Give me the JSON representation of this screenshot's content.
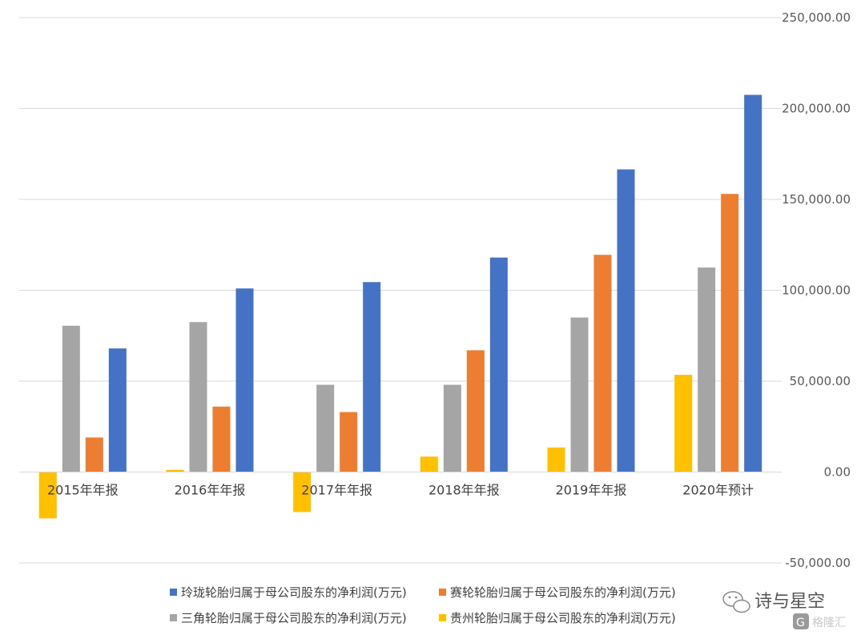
{
  "chart_data": {
    "type": "bar",
    "categories": [
      "2015年年报",
      "2016年年报",
      "2017年年报",
      "2018年年报",
      "2019年年报",
      "2020年预计"
    ],
    "series": [
      {
        "name": "玲珑轮胎归属于母公司股东的净利润(万元)",
        "color": "#4472C4",
        "values": [
          68000,
          101000,
          104500,
          118000,
          166500,
          207500
        ]
      },
      {
        "name": "赛轮轮胎归属于母公司股东的净利润(万元)",
        "color": "#ED7D31",
        "values": [
          19000,
          36000,
          33000,
          67000,
          119500,
          153000
        ]
      },
      {
        "name": "三角轮胎归属于母公司股东的净利润(万元)",
        "color": "#A5A5A5",
        "values": [
          80500,
          82500,
          48000,
          48000,
          85000,
          112500
        ]
      },
      {
        "name": "贵州轮胎归属于母公司股东的净利润(万元)",
        "color": "#FFC000",
        "values": [
          -25500,
          1200,
          -22000,
          8500,
          13500,
          53500
        ]
      }
    ],
    "draw_order": [
      3,
      2,
      1,
      0
    ],
    "ylim": [
      -50000,
      250000
    ],
    "yticks": [
      -50000,
      0,
      50000,
      100000,
      150000,
      200000,
      250000
    ],
    "ytick_labels": [
      "-50,000.00",
      "0.00",
      "50,000.00",
      "100,000.00",
      "150,000.00",
      "200,000.00",
      "250,000.00"
    ],
    "y_axis_side": "right",
    "grid": true,
    "legend_position": "bottom"
  },
  "watermark": {
    "text": "诗与星空",
    "logo_text": "格隆汇"
  }
}
